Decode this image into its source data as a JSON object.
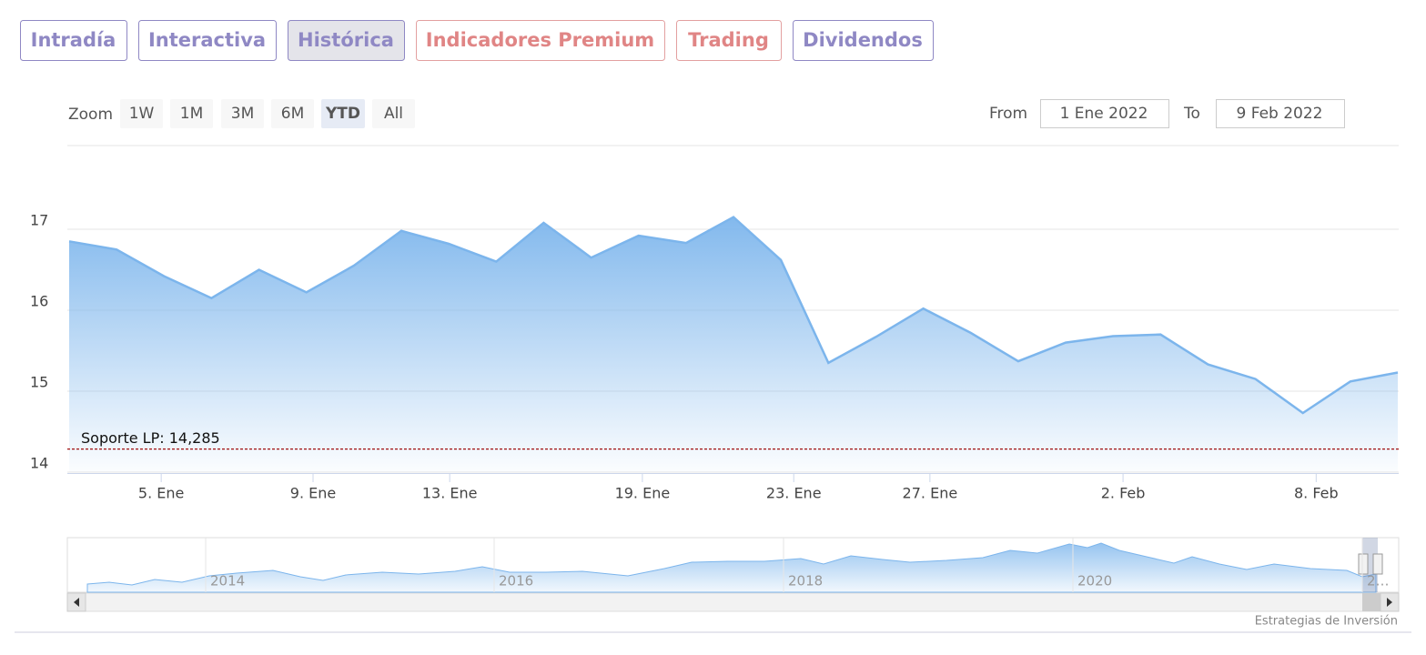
{
  "tabs": [
    "Intradía",
    "Interactiva",
    "Histórica",
    "Indicadores Premium",
    "Trading",
    "Dividendos"
  ],
  "range_selector": {
    "zoom_label": "Zoom",
    "buttons": [
      "1W",
      "1M",
      "3M",
      "6M",
      "YTD",
      "All"
    ],
    "from_label": "From",
    "from": "1 Ene 2022",
    "to_label": "To",
    "to": "9 Feb 2022"
  },
  "chart_data": {
    "type": "area",
    "values": [
      16.85,
      16.75,
      16.42,
      16.15,
      16.5,
      16.22,
      16.55,
      16.98,
      16.82,
      16.6,
      17.08,
      16.65,
      16.92,
      16.83,
      17.15,
      16.62,
      15.35,
      15.67,
      16.02,
      15.72,
      15.37,
      15.6,
      15.68,
      15.7,
      15.33,
      15.15,
      14.73,
      15.12,
      15.23
    ],
    "xlim": [
      0,
      28
    ],
    "xticks": [
      {
        "value": 1.94,
        "label": "5. Ene"
      },
      {
        "value": 5.14,
        "label": "9. Ene"
      },
      {
        "value": 8.02,
        "label": "13. Ene"
      },
      {
        "value": 12.08,
        "label": "19. Ene"
      },
      {
        "value": 15.27,
        "label": "23. Ene"
      },
      {
        "value": 18.14,
        "label": "27. Ene"
      },
      {
        "value": 22.21,
        "label": "2. Feb"
      },
      {
        "value": 26.28,
        "label": "8. Feb"
      }
    ],
    "ylim": [
      14,
      18
    ],
    "yticks": [
      14,
      15,
      16,
      17
    ],
    "grid": true,
    "color": "#7cb5ec",
    "plot_line": {
      "value": 14.285,
      "label": "Soporte LP: 14,285",
      "color": "#a01010"
    }
  },
  "navigator": {
    "labels": [
      "2014",
      "2016",
      "2018",
      "2020",
      "2…"
    ]
  },
  "credits": "Estrategias de Inversión"
}
